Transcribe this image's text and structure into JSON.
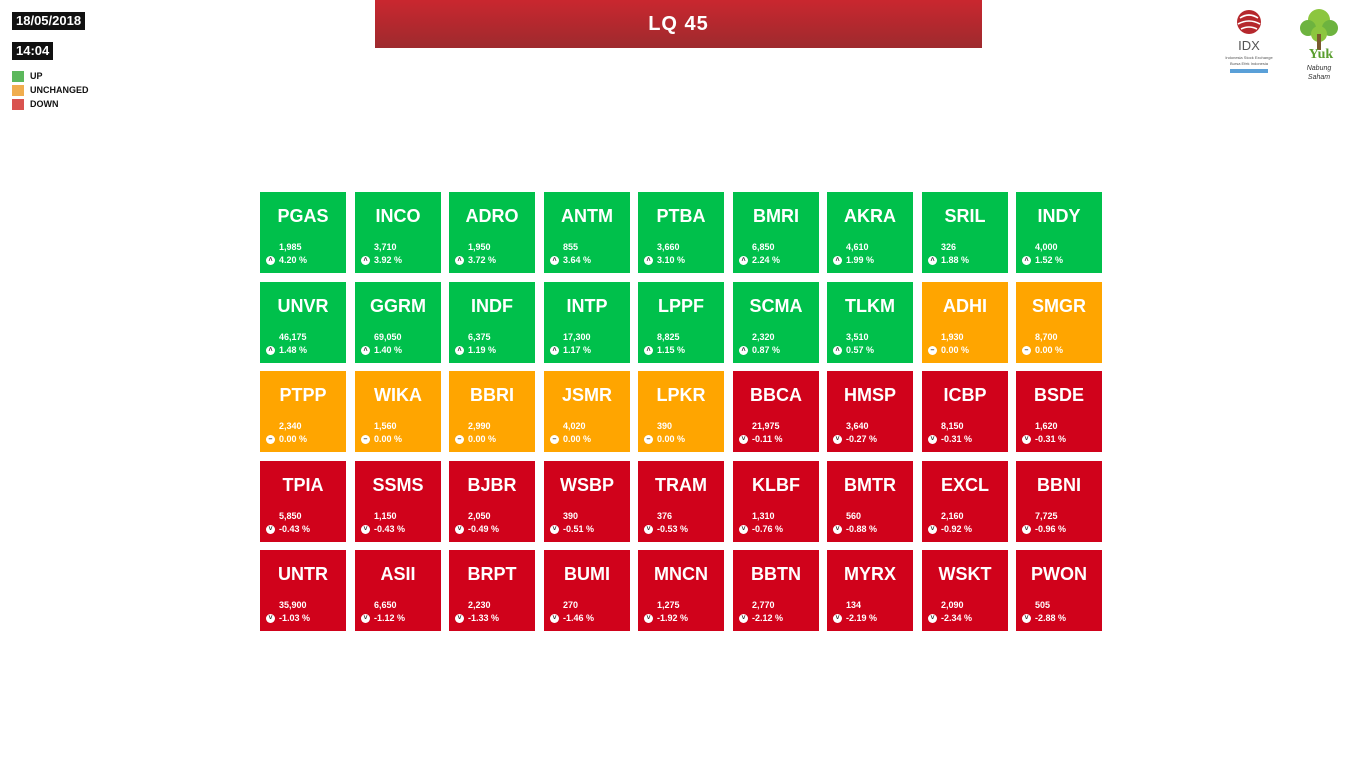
{
  "header": {
    "date": "18/05/2018",
    "time": "14:04",
    "title": "LQ 45"
  },
  "legend": [
    {
      "label": "UP",
      "color": "#5cb85c"
    },
    {
      "label": "UNCHANGED",
      "color": "#f0ad4e"
    },
    {
      "label": "DOWN",
      "color": "#d9534f"
    }
  ],
  "logos": {
    "idx": {
      "name": "IDX",
      "sub1": "Indonesia Stock Exchange",
      "sub2": "Bursa Efek Indonesia"
    },
    "yuk": {
      "name": "Yuk",
      "sub1": "Nabung",
      "sub2": "Saham"
    }
  },
  "colors": {
    "up": "#00c04b",
    "unchanged": "#ffa500",
    "down": "#d0021b"
  },
  "stocks": [
    {
      "code": "PGAS",
      "price": "1,985",
      "change": "4.20 %",
      "status": "up"
    },
    {
      "code": "INCO",
      "price": "3,710",
      "change": "3.92 %",
      "status": "up"
    },
    {
      "code": "ADRO",
      "price": "1,950",
      "change": "3.72 %",
      "status": "up"
    },
    {
      "code": "ANTM",
      "price": "855",
      "change": "3.64 %",
      "status": "up"
    },
    {
      "code": "PTBA",
      "price": "3,660",
      "change": "3.10 %",
      "status": "up"
    },
    {
      "code": "BMRI",
      "price": "6,850",
      "change": "2.24 %",
      "status": "up"
    },
    {
      "code": "AKRA",
      "price": "4,610",
      "change": "1.99 %",
      "status": "up"
    },
    {
      "code": "SRIL",
      "price": "326",
      "change": "1.88 %",
      "status": "up"
    },
    {
      "code": "INDY",
      "price": "4,000",
      "change": "1.52 %",
      "status": "up"
    },
    {
      "code": "UNVR",
      "price": "46,175",
      "change": "1.48 %",
      "status": "up"
    },
    {
      "code": "GGRM",
      "price": "69,050",
      "change": "1.40 %",
      "status": "up"
    },
    {
      "code": "INDF",
      "price": "6,375",
      "change": "1.19 %",
      "status": "up"
    },
    {
      "code": "INTP",
      "price": "17,300",
      "change": "1.17 %",
      "status": "up"
    },
    {
      "code": "LPPF",
      "price": "8,825",
      "change": "1.15 %",
      "status": "up"
    },
    {
      "code": "SCMA",
      "price": "2,320",
      "change": "0.87 %",
      "status": "up"
    },
    {
      "code": "TLKM",
      "price": "3,510",
      "change": "0.57 %",
      "status": "up"
    },
    {
      "code": "ADHI",
      "price": "1,930",
      "change": "0.00 %",
      "status": "unchanged"
    },
    {
      "code": "SMGR",
      "price": "8,700",
      "change": "0.00 %",
      "status": "unchanged"
    },
    {
      "code": "PTPP",
      "price": "2,340",
      "change": "0.00 %",
      "status": "unchanged"
    },
    {
      "code": "WIKA",
      "price": "1,560",
      "change": "0.00 %",
      "status": "unchanged"
    },
    {
      "code": "BBRI",
      "price": "2,990",
      "change": "0.00 %",
      "status": "unchanged"
    },
    {
      "code": "JSMR",
      "price": "4,020",
      "change": "0.00 %",
      "status": "unchanged"
    },
    {
      "code": "LPKR",
      "price": "390",
      "change": "0.00 %",
      "status": "unchanged"
    },
    {
      "code": "BBCA",
      "price": "21,975",
      "change": "-0.11 %",
      "status": "down"
    },
    {
      "code": "HMSP",
      "price": "3,640",
      "change": "-0.27 %",
      "status": "down"
    },
    {
      "code": "ICBP",
      "price": "8,150",
      "change": "-0.31 %",
      "status": "down"
    },
    {
      "code": "BSDE",
      "price": "1,620",
      "change": "-0.31 %",
      "status": "down"
    },
    {
      "code": "TPIA",
      "price": "5,850",
      "change": "-0.43 %",
      "status": "down"
    },
    {
      "code": "SSMS",
      "price": "1,150",
      "change": "-0.43 %",
      "status": "down"
    },
    {
      "code": "BJBR",
      "price": "2,050",
      "change": "-0.49 %",
      "status": "down"
    },
    {
      "code": "WSBP",
      "price": "390",
      "change": "-0.51 %",
      "status": "down"
    },
    {
      "code": "TRAM",
      "price": "376",
      "change": "-0.53 %",
      "status": "down"
    },
    {
      "code": "KLBF",
      "price": "1,310",
      "change": "-0.76 %",
      "status": "down"
    },
    {
      "code": "BMTR",
      "price": "560",
      "change": "-0.88 %",
      "status": "down"
    },
    {
      "code": "EXCL",
      "price": "2,160",
      "change": "-0.92 %",
      "status": "down"
    },
    {
      "code": "BBNI",
      "price": "7,725",
      "change": "-0.96 %",
      "status": "down"
    },
    {
      "code": "UNTR",
      "price": "35,900",
      "change": "-1.03 %",
      "status": "down"
    },
    {
      "code": "ASII",
      "price": "6,650",
      "change": "-1.12 %",
      "status": "down"
    },
    {
      "code": "BRPT",
      "price": "2,230",
      "change": "-1.33 %",
      "status": "down"
    },
    {
      "code": "BUMI",
      "price": "270",
      "change": "-1.46 %",
      "status": "down"
    },
    {
      "code": "MNCN",
      "price": "1,275",
      "change": "-1.92 %",
      "status": "down"
    },
    {
      "code": "BBTN",
      "price": "2,770",
      "change": "-2.12 %",
      "status": "down"
    },
    {
      "code": "MYRX",
      "price": "134",
      "change": "-2.19 %",
      "status": "down"
    },
    {
      "code": "WSKT",
      "price": "2,090",
      "change": "-2.34 %",
      "status": "down"
    },
    {
      "code": "PWON",
      "price": "505",
      "change": "-2.88 %",
      "status": "down"
    }
  ]
}
